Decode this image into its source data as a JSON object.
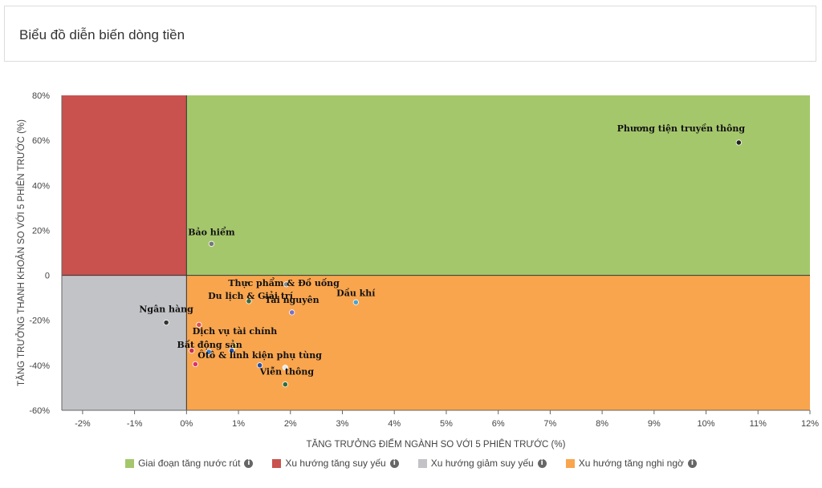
{
  "header": {
    "title": "Biểu đồ diễn biến dòng tiền"
  },
  "colors": {
    "green_zone": "#a5c76c",
    "red_zone": "#c9514e",
    "gray_zone": "#c2c3c7",
    "orange_zone": "#f9a54e"
  },
  "legend": [
    {
      "label": "Giai đoạn tăng nước rút",
      "color": "#a5c76c",
      "icon": "info-icon"
    },
    {
      "label": "Xu hướng tăng suy yếu",
      "color": "#c9514e",
      "icon": "info-icon"
    },
    {
      "label": "Xu hướng giảm suy yếu",
      "color": "#c2c3c7",
      "icon": "info-icon"
    },
    {
      "label": "Xu hướng tăng nghi ngờ",
      "color": "#f9a54e",
      "icon": "info-icon"
    }
  ],
  "chart_data": {
    "type": "scatter",
    "xlabel": "TĂNG TRƯỞNG ĐIỂM NGÀNH SO VỚI 5 PHIÊN TRƯỚC (%)",
    "ylabel": "TĂNG TRƯỞNG THANH KHOẢN SO VỚI 5 PHIÊN TRƯỚC (%)",
    "xlim": [
      -2.4,
      12
    ],
    "ylim": [
      -60,
      80
    ],
    "x_ticks": [
      -2,
      -1,
      0,
      1,
      2,
      3,
      4,
      5,
      6,
      7,
      8,
      9,
      10,
      11,
      12
    ],
    "y_ticks": [
      -60,
      -40,
      -20,
      0,
      20,
      40,
      60,
      80
    ],
    "x_tick_labels": [
      "-2%",
      "-1%",
      "0%",
      "1%",
      "2%",
      "3%",
      "4%",
      "5%",
      "6%",
      "7%",
      "8%",
      "9%",
      "10%",
      "11%",
      "12%"
    ],
    "y_tick_labels": [
      "-60%",
      "-40%",
      "-20%",
      "0",
      "20%",
      "40%",
      "60%",
      "80%"
    ],
    "points": [
      {
        "name": "Phương tiện truyền thông",
        "x": 10.63,
        "y": 59,
        "color": "#222222"
      },
      {
        "name": "Bảo hiểm",
        "x": 0.48,
        "y": 14,
        "color": "#777777"
      },
      {
        "name": "Thực phẩm & Đồ uống",
        "x": 1.92,
        "y": -4,
        "color": "#888888"
      },
      {
        "name": "Du lịch & Giải trí",
        "x": 1.2,
        "y": -11.5,
        "color": "#3a6b3a"
      },
      {
        "name": "Dầu khí",
        "x": 3.26,
        "y": -12,
        "color": "#4aa3c9"
      },
      {
        "name": "Tài nguyên",
        "x": 2.03,
        "y": -16.5,
        "color": "#7b6fc9"
      },
      {
        "name": "Ngân hàng",
        "x": -0.39,
        "y": -21,
        "color": "#333333"
      },
      {
        "name": "",
        "x": 0.24,
        "y": -22,
        "color": "#d9534f"
      },
      {
        "name": "Dịch vụ tài chính",
        "x": 0.93,
        "y": -31.5,
        "color": "#e8c020"
      },
      {
        "name": "Bất động sản",
        "x": 0.43,
        "y": -34,
        "color": "#3d7cc9"
      },
      {
        "name": "",
        "x": 0.1,
        "y": -33.5,
        "color": "#c9304f"
      },
      {
        "name": "",
        "x": 0.87,
        "y": -33.5,
        "color": "#2a4ea0"
      },
      {
        "name": "Ôtô & linh kiện phụ tùng",
        "x": 1.41,
        "y": -40,
        "color": "#2a4ea0"
      },
      {
        "name": "",
        "x": 0.17,
        "y": -39.5,
        "color": "#e0306a"
      },
      {
        "name": "",
        "x": 1.9,
        "y": -41,
        "color": "#e8e8e8"
      },
      {
        "name": "Viễn thông",
        "x": 1.9,
        "y": -48.5,
        "color": "#2e6e3a"
      }
    ]
  }
}
